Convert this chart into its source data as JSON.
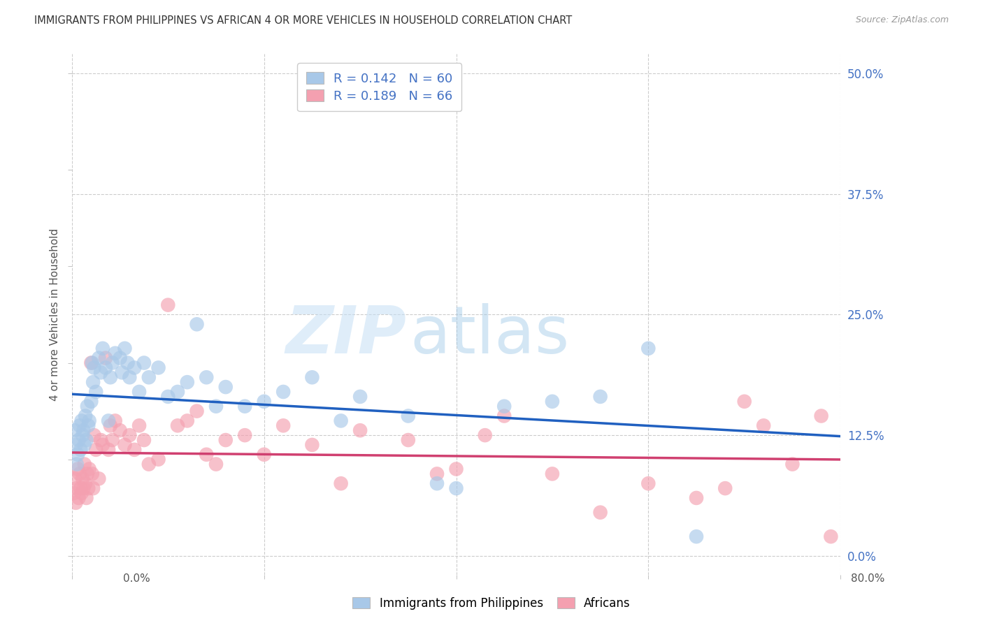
{
  "title": "IMMIGRANTS FROM PHILIPPINES VS AFRICAN 4 OR MORE VEHICLES IN HOUSEHOLD CORRELATION CHART",
  "source": "Source: ZipAtlas.com",
  "ylabel": "4 or more Vehicles in Household",
  "xlim": [
    0.0,
    80.0
  ],
  "ylim": [
    -2.0,
    52.0
  ],
  "yticks": [
    0.0,
    12.5,
    25.0,
    37.5,
    50.0
  ],
  "xticks": [
    0.0,
    20.0,
    40.0,
    60.0,
    80.0
  ],
  "blue_R": 0.142,
  "blue_N": 60,
  "pink_R": 0.189,
  "pink_N": 66,
  "watermark_zip": "ZIP",
  "watermark_atlas": "atlas",
  "blue_color": "#a8c8e8",
  "pink_color": "#f4a0b0",
  "blue_line_color": "#2060c0",
  "pink_line_color": "#d04070",
  "blue_label": "Immigrants from Philippines",
  "pink_label": "Africans",
  "blue_points": [
    [
      0.3,
      13.0
    ],
    [
      0.4,
      11.5
    ],
    [
      0.5,
      9.5
    ],
    [
      0.6,
      10.5
    ],
    [
      0.7,
      12.0
    ],
    [
      0.8,
      13.5
    ],
    [
      0.9,
      11.0
    ],
    [
      1.0,
      14.0
    ],
    [
      1.1,
      12.5
    ],
    [
      1.2,
      13.0
    ],
    [
      1.3,
      11.5
    ],
    [
      1.4,
      14.5
    ],
    [
      1.5,
      12.0
    ],
    [
      1.6,
      15.5
    ],
    [
      1.7,
      13.5
    ],
    [
      1.8,
      14.0
    ],
    [
      2.0,
      16.0
    ],
    [
      2.1,
      20.0
    ],
    [
      2.2,
      18.0
    ],
    [
      2.3,
      19.5
    ],
    [
      2.5,
      17.0
    ],
    [
      2.8,
      20.5
    ],
    [
      3.0,
      19.0
    ],
    [
      3.2,
      21.5
    ],
    [
      3.5,
      19.5
    ],
    [
      3.8,
      14.0
    ],
    [
      4.0,
      18.5
    ],
    [
      4.2,
      20.0
    ],
    [
      4.5,
      21.0
    ],
    [
      5.0,
      20.5
    ],
    [
      5.2,
      19.0
    ],
    [
      5.5,
      21.5
    ],
    [
      5.8,
      20.0
    ],
    [
      6.0,
      18.5
    ],
    [
      6.5,
      19.5
    ],
    [
      7.0,
      17.0
    ],
    [
      7.5,
      20.0
    ],
    [
      8.0,
      18.5
    ],
    [
      9.0,
      19.5
    ],
    [
      10.0,
      16.5
    ],
    [
      11.0,
      17.0
    ],
    [
      12.0,
      18.0
    ],
    [
      13.0,
      24.0
    ],
    [
      14.0,
      18.5
    ],
    [
      15.0,
      15.5
    ],
    [
      16.0,
      17.5
    ],
    [
      18.0,
      15.5
    ],
    [
      20.0,
      16.0
    ],
    [
      22.0,
      17.0
    ],
    [
      25.0,
      18.5
    ],
    [
      28.0,
      14.0
    ],
    [
      30.0,
      16.5
    ],
    [
      35.0,
      14.5
    ],
    [
      38.0,
      7.5
    ],
    [
      40.0,
      7.0
    ],
    [
      45.0,
      15.5
    ],
    [
      50.0,
      16.0
    ],
    [
      55.0,
      16.5
    ],
    [
      60.0,
      21.5
    ],
    [
      65.0,
      2.0
    ]
  ],
  "pink_points": [
    [
      0.2,
      6.5
    ],
    [
      0.3,
      8.0
    ],
    [
      0.4,
      5.5
    ],
    [
      0.5,
      7.0
    ],
    [
      0.6,
      9.0
    ],
    [
      0.7,
      6.0
    ],
    [
      0.8,
      8.5
    ],
    [
      0.9,
      7.0
    ],
    [
      1.0,
      6.5
    ],
    [
      1.1,
      8.0
    ],
    [
      1.2,
      7.0
    ],
    [
      1.3,
      9.5
    ],
    [
      1.4,
      7.5
    ],
    [
      1.5,
      6.0
    ],
    [
      1.6,
      8.5
    ],
    [
      1.7,
      7.0
    ],
    [
      1.8,
      9.0
    ],
    [
      2.0,
      20.0
    ],
    [
      2.1,
      8.5
    ],
    [
      2.2,
      7.0
    ],
    [
      2.3,
      12.5
    ],
    [
      2.5,
      11.0
    ],
    [
      2.8,
      8.0
    ],
    [
      3.0,
      12.0
    ],
    [
      3.2,
      11.5
    ],
    [
      3.5,
      20.5
    ],
    [
      3.8,
      11.0
    ],
    [
      4.0,
      13.5
    ],
    [
      4.2,
      12.0
    ],
    [
      4.5,
      14.0
    ],
    [
      5.0,
      13.0
    ],
    [
      5.5,
      11.5
    ],
    [
      6.0,
      12.5
    ],
    [
      6.5,
      11.0
    ],
    [
      7.0,
      13.5
    ],
    [
      7.5,
      12.0
    ],
    [
      8.0,
      9.5
    ],
    [
      9.0,
      10.0
    ],
    [
      10.0,
      26.0
    ],
    [
      11.0,
      13.5
    ],
    [
      12.0,
      14.0
    ],
    [
      13.0,
      15.0
    ],
    [
      14.0,
      10.5
    ],
    [
      15.0,
      9.5
    ],
    [
      16.0,
      12.0
    ],
    [
      18.0,
      12.5
    ],
    [
      20.0,
      10.5
    ],
    [
      22.0,
      13.5
    ],
    [
      25.0,
      11.5
    ],
    [
      28.0,
      7.5
    ],
    [
      30.0,
      13.0
    ],
    [
      35.0,
      12.0
    ],
    [
      38.0,
      8.5
    ],
    [
      40.0,
      9.0
    ],
    [
      43.0,
      12.5
    ],
    [
      45.0,
      14.5
    ],
    [
      50.0,
      8.5
    ],
    [
      55.0,
      4.5
    ],
    [
      60.0,
      7.5
    ],
    [
      65.0,
      6.0
    ],
    [
      68.0,
      7.0
    ],
    [
      70.0,
      16.0
    ],
    [
      72.0,
      13.5
    ],
    [
      75.0,
      9.5
    ],
    [
      78.0,
      14.5
    ],
    [
      79.0,
      2.0
    ]
  ]
}
